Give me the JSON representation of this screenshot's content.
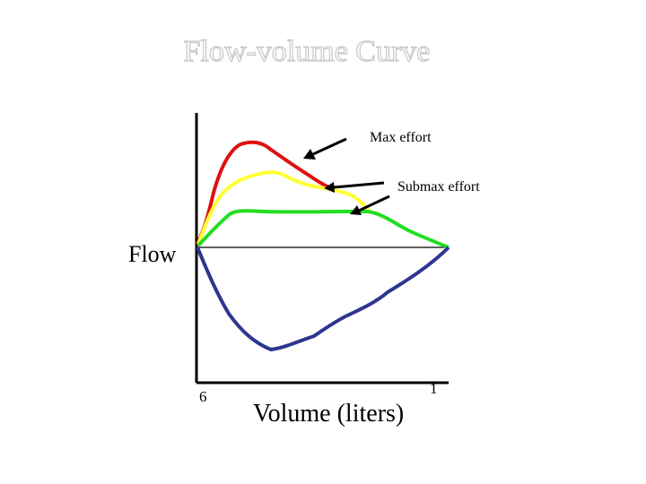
{
  "slide": {
    "title": "Flow-volume Curve",
    "y_label": "Flow",
    "x_label": "Volume (liters)",
    "x_tick_left": "6",
    "x_tick_right": "1",
    "annotations": {
      "max_effort": "Max effort",
      "submax_effort": "Submax effort"
    }
  },
  "colors": {
    "max_effort_curve": "#e01010",
    "submax_effort_curve": "#ffff33",
    "third_curve": "#22dd22",
    "inspiratory_curve": "#2e3590",
    "axes": "#000000"
  }
}
